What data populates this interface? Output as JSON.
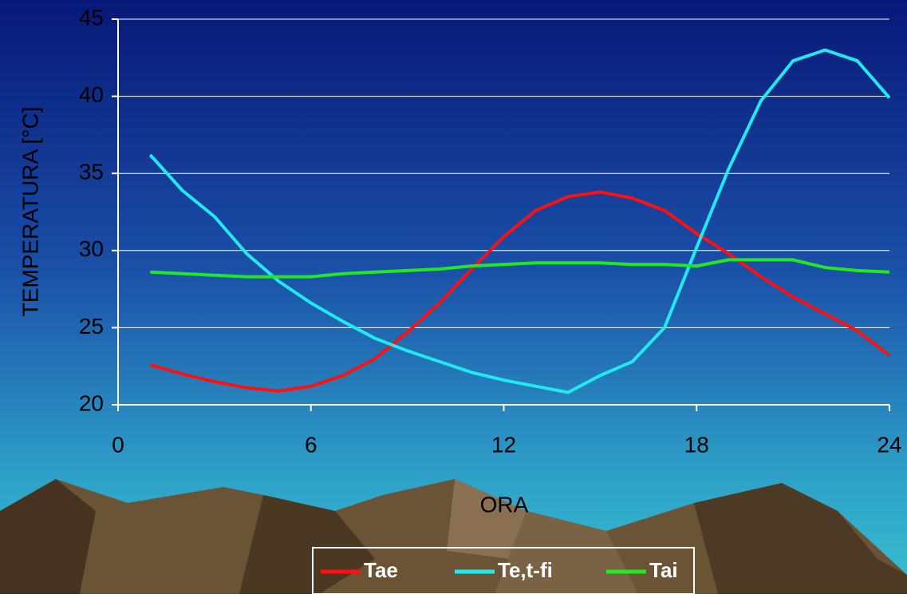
{
  "chart_data": {
    "type": "line",
    "xlabel": "ORA",
    "ylabel": "TEMPERATURA [°C]",
    "x": [
      1,
      2,
      3,
      4,
      5,
      6,
      7,
      8,
      9,
      10,
      11,
      12,
      13,
      14,
      15,
      16,
      17,
      18,
      19,
      20,
      21,
      22,
      23,
      24
    ],
    "series": [
      {
        "name": "Tae",
        "color": "#ff1010",
        "values": [
          22.6,
          22.0,
          21.5,
          21.1,
          20.9,
          21.2,
          21.9,
          23.0,
          24.7,
          26.6,
          28.8,
          30.9,
          32.6,
          33.5,
          33.8,
          33.4,
          32.6,
          31.1,
          29.8,
          28.3,
          27.0,
          25.9,
          24.8,
          23.2
        ]
      },
      {
        "name": "Te,t-fi",
        "color": "#22e8f0",
        "values": [
          36.2,
          33.9,
          32.2,
          29.8,
          28.0,
          26.6,
          25.4,
          24.3,
          23.5,
          22.8,
          22.1,
          21.6,
          21.2,
          20.8,
          21.9,
          22.8,
          25.0,
          30.2,
          35.3,
          39.7,
          42.3,
          43.0,
          42.3,
          39.9
        ]
      },
      {
        "name": "Tai",
        "color": "#22e822",
        "values": [
          28.6,
          28.5,
          28.4,
          28.3,
          28.3,
          28.3,
          28.5,
          28.6,
          28.7,
          28.8,
          29.0,
          29.1,
          29.2,
          29.2,
          29.2,
          29.1,
          29.1,
          29.0,
          29.4,
          29.4,
          29.4,
          28.9,
          28.7,
          28.6
        ]
      }
    ],
    "xlim": [
      0,
      24
    ],
    "xticks": [
      0,
      6,
      12,
      18,
      24
    ],
    "ylim": [
      20,
      45
    ],
    "yticks": [
      20,
      25,
      30,
      35,
      40,
      45
    ],
    "grid": true,
    "legend": "bottom"
  }
}
